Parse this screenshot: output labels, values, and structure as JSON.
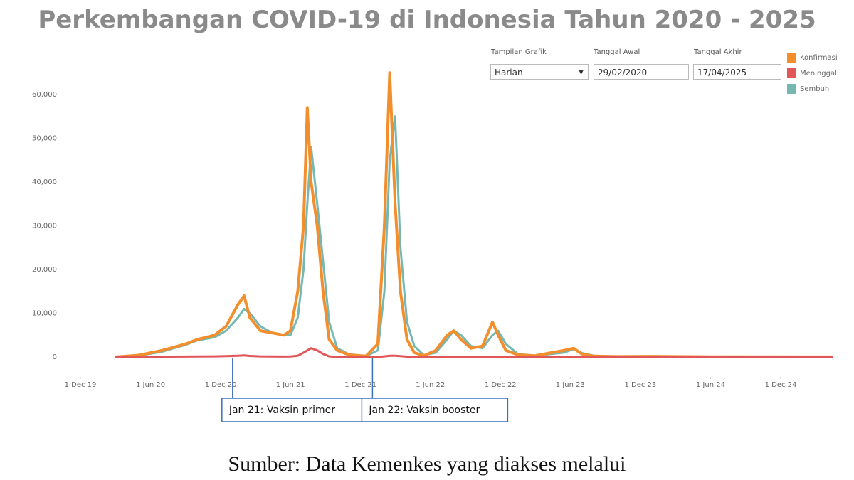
{
  "chart_data": {
    "type": "line",
    "title": "Perkembangan COVID-19 di Indonesia Tahun 2020 - 2025",
    "source": "Sumber: Data Kemenkes yang diakses melalui",
    "controls": {
      "display_label": "Tampilan Grafik",
      "display_value": "Harian",
      "start_label": "Tanggal Awal",
      "start_value": "29/02/2020",
      "end_label": "Tanggal Akhir",
      "end_value": "17/04/2025"
    },
    "x": [
      "2020-03-01",
      "2020-05-01",
      "2020-07-01",
      "2020-09-01",
      "2020-10-01",
      "2020-11-15",
      "2020-12-15",
      "2021-01-15",
      "2021-01-31",
      "2021-02-15",
      "2021-03-15",
      "2021-04-15",
      "2021-05-15",
      "2021-06-01",
      "2021-06-20",
      "2021-07-05",
      "2021-07-15",
      "2021-07-25",
      "2021-08-10",
      "2021-08-25",
      "2021-09-10",
      "2021-10-01",
      "2021-11-01",
      "2021-12-15",
      "2022-01-15",
      "2022-02-01",
      "2022-02-15",
      "2022-03-01",
      "2022-03-15",
      "2022-04-01",
      "2022-04-20",
      "2022-05-15",
      "2022-06-15",
      "2022-07-15",
      "2022-08-01",
      "2022-08-20",
      "2022-09-15",
      "2022-10-15",
      "2022-11-10",
      "2022-11-25",
      "2022-12-15",
      "2023-01-15",
      "2023-03-01",
      "2023-05-15",
      "2023-06-10",
      "2023-07-01",
      "2023-08-01",
      "2023-10-01",
      "2024-01-01",
      "2024-06-01",
      "2025-04-17"
    ],
    "series": [
      {
        "name": "Konfirmasi",
        "color": "#f28e2b",
        "values": [
          0,
          400,
          1500,
          3000,
          4000,
          5000,
          7000,
          12000,
          14000,
          9000,
          6000,
          5500,
          5000,
          6000,
          15000,
          30000,
          57000,
          40000,
          30000,
          15000,
          4000,
          1500,
          500,
          200,
          3000,
          30000,
          65000,
          35000,
          15000,
          4000,
          1000,
          300,
          1500,
          5000,
          6000,
          4000,
          2000,
          2500,
          8000,
          5000,
          1500,
          500,
          300,
          1500,
          2000,
          700,
          200,
          100,
          150,
          50,
          20
        ]
      },
      {
        "name": "Meninggal",
        "color": "#e15759",
        "values": [
          0,
          50,
          70,
          100,
          120,
          150,
          200,
          300,
          350,
          250,
          150,
          120,
          100,
          120,
          300,
          1000,
          1500,
          2000,
          1500,
          700,
          150,
          50,
          20,
          10,
          20,
          150,
          300,
          300,
          200,
          80,
          30,
          10,
          15,
          30,
          40,
          30,
          20,
          15,
          40,
          40,
          20,
          10,
          5,
          10,
          10,
          5,
          3,
          2,
          2,
          1,
          0
        ]
      },
      {
        "name": "Sembuh",
        "color": "#76b7b2",
        "values": [
          0,
          300,
          1200,
          2800,
          3800,
          4500,
          6000,
          9000,
          11000,
          10000,
          7000,
          5500,
          5000,
          5000,
          9000,
          20000,
          35000,
          48000,
          35000,
          22000,
          8000,
          2000,
          600,
          200,
          1500,
          15000,
          45000,
          55000,
          25000,
          8000,
          2500,
          400,
          1000,
          4000,
          6000,
          5000,
          2500,
          2000,
          5000,
          6000,
          3000,
          700,
          300,
          1000,
          1800,
          900,
          300,
          100,
          150,
          50,
          20
        ]
      }
    ],
    "xlim": [
      "2019-12-01",
      "2025-06-01"
    ],
    "xticks": [
      {
        "value": "2019-12-01",
        "label": "1 Dec 19"
      },
      {
        "value": "2020-06-01",
        "label": "1 Jun 20"
      },
      {
        "value": "2020-12-01",
        "label": "1 Dec 20"
      },
      {
        "value": "2021-06-01",
        "label": "1 Jun 21"
      },
      {
        "value": "2021-12-01",
        "label": "1 Dec 21"
      },
      {
        "value": "2022-06-01",
        "label": "1 Jun 22"
      },
      {
        "value": "2022-12-01",
        "label": "1 Dec 22"
      },
      {
        "value": "2023-06-01",
        "label": "1 Jun 23"
      },
      {
        "value": "2023-12-01",
        "label": "1 Dec 23"
      },
      {
        "value": "2024-06-01",
        "label": "1 Jun 24"
      },
      {
        "value": "2024-12-01",
        "label": "1 Dec 24"
      }
    ],
    "ylim": [
      0,
      60000
    ],
    "yticks": [
      0,
      {
        "value": 10000,
        "label": "10,000"
      },
      {
        "value": 20000,
        "label": "20,000"
      },
      {
        "value": 30000,
        "label": "30,000"
      },
      {
        "value": 40000,
        "label": "40,000"
      },
      {
        "value": 50000,
        "label": "50,000"
      },
      {
        "value": 60000,
        "label": "60,000"
      }
    ],
    "grid": false,
    "legend": "top-right",
    "annotations": [
      {
        "text": "Jan 21: Vaksin primer",
        "x": "2021-01-01"
      },
      {
        "text": "Jan 22: Vaksin booster",
        "x": "2022-01-01"
      }
    ]
  }
}
